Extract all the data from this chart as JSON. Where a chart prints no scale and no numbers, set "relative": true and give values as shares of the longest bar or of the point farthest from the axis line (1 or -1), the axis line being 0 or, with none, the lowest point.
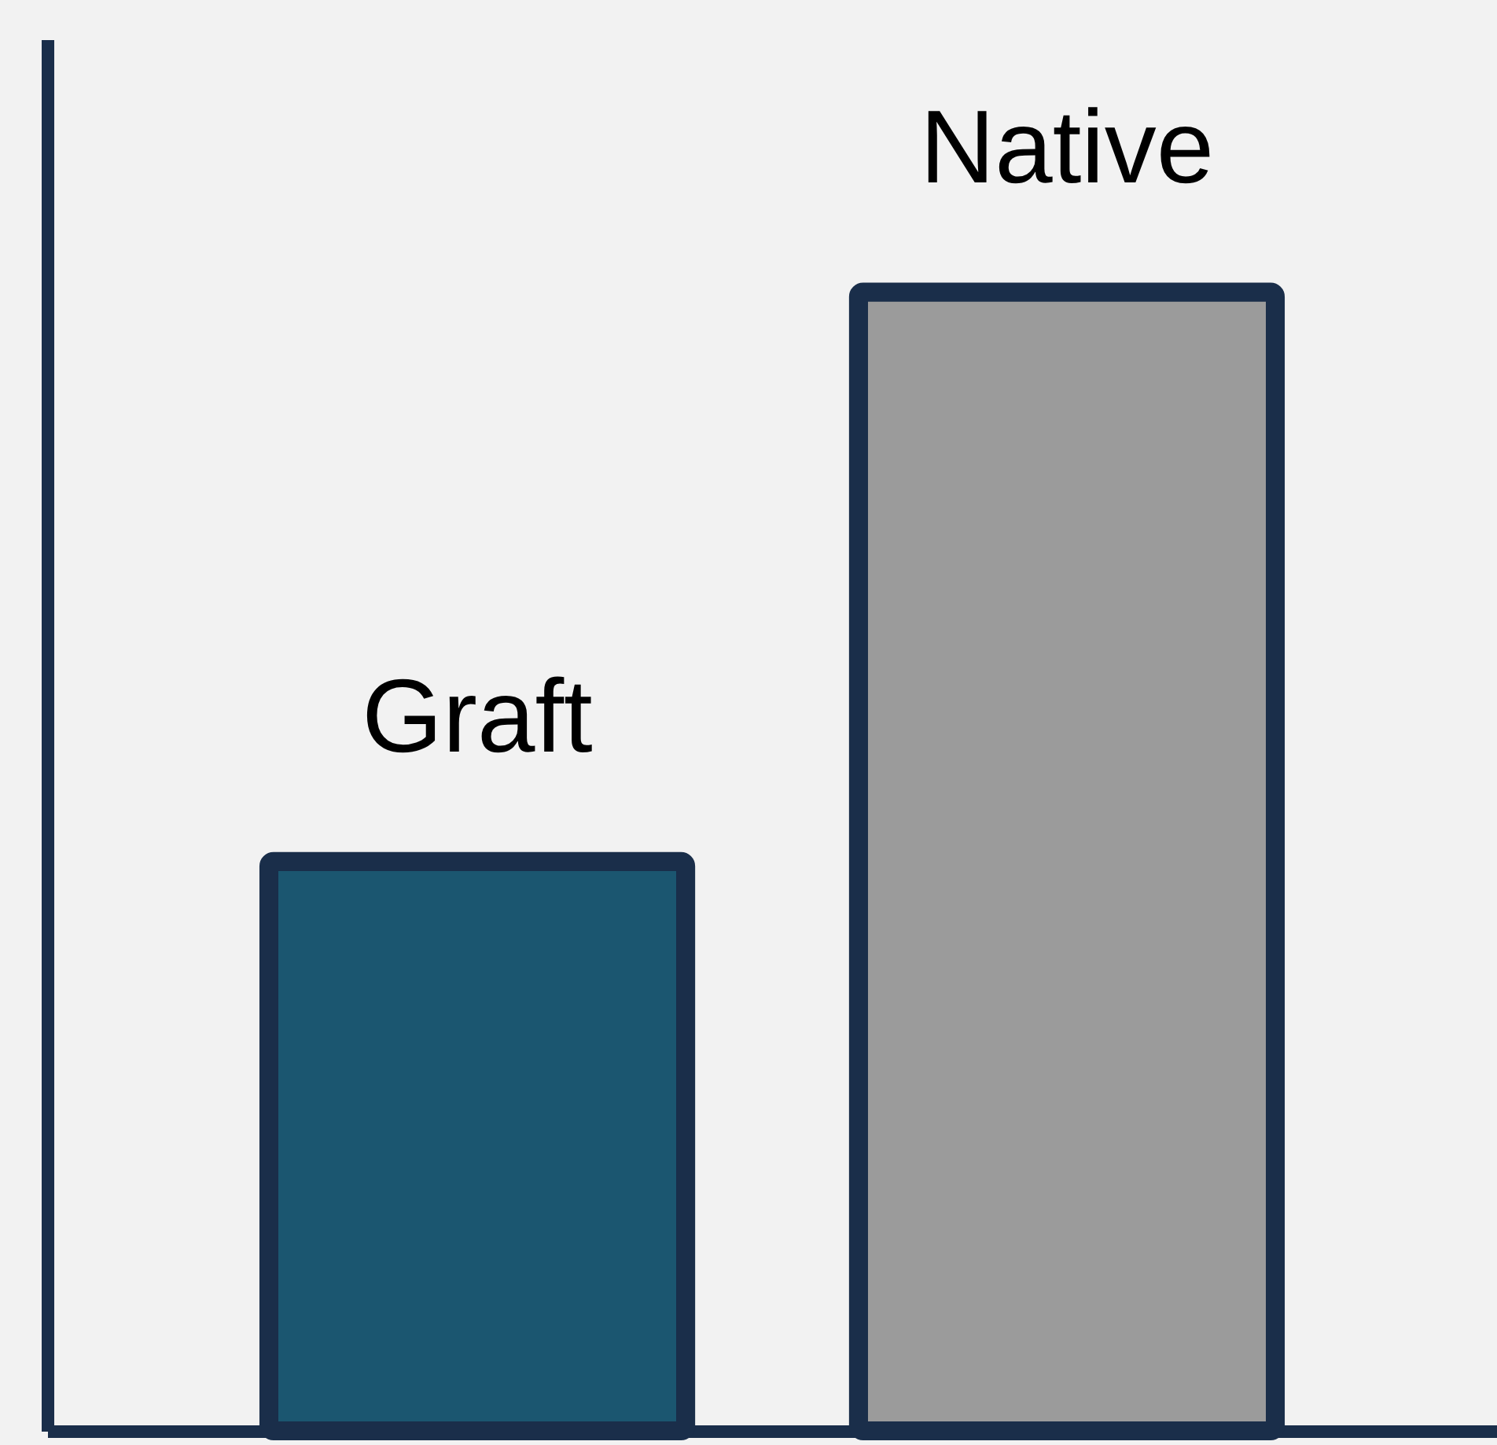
{
  "chart_data": {
    "type": "bar",
    "categories": [
      "Graft",
      "Native"
    ],
    "values": [
      0.5,
      1
    ],
    "colors": [
      "#1b5670",
      "#9b9b9b"
    ],
    "relative": true
  }
}
